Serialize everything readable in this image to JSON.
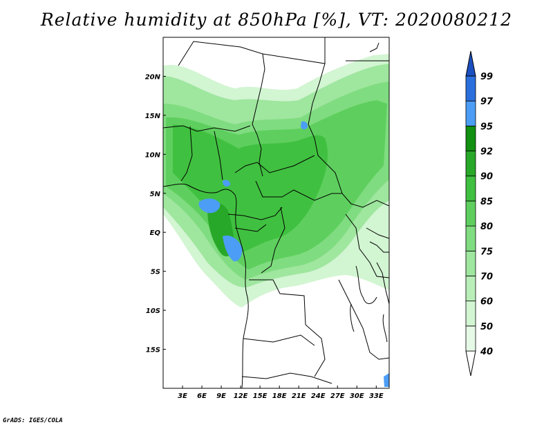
{
  "title": "Relative humidity at 850hPa [%], VT: 2020080212",
  "credit": "GrADS: IGES/COLA",
  "map": {
    "lon_labels": [
      {
        "text": "3E",
        "value": 3
      },
      {
        "text": "6E",
        "value": 6
      },
      {
        "text": "9E",
        "value": 9
      },
      {
        "text": "12E",
        "value": 12
      },
      {
        "text": "15E",
        "value": 15
      },
      {
        "text": "18E",
        "value": 18
      },
      {
        "text": "21E",
        "value": 21
      },
      {
        "text": "24E",
        "value": 24
      },
      {
        "text": "27E",
        "value": 27
      },
      {
        "text": "30E",
        "value": 30
      },
      {
        "text": "33E",
        "value": 33
      }
    ],
    "lat_labels": [
      {
        "text": "20N",
        "value": 20
      },
      {
        "text": "15N",
        "value": 15
      },
      {
        "text": "10N",
        "value": 10
      },
      {
        "text": "5N",
        "value": 5
      },
      {
        "text": "EQ",
        "value": 0
      },
      {
        "text": "5S",
        "value": -5
      },
      {
        "text": "10S",
        "value": -10
      },
      {
        "text": "15S",
        "value": -15
      }
    ],
    "lon_range": [
      0,
      35
    ],
    "lat_range": [
      -20,
      25
    ]
  },
  "colorbar": {
    "levels": [
      "40",
      "50",
      "60",
      "70",
      "75",
      "80",
      "85",
      "90",
      "92",
      "95",
      "97",
      "99"
    ],
    "colors": [
      "#ffffff",
      "#e6f9e6",
      "#d2f5d2",
      "#b9eeb9",
      "#9fe69f",
      "#80dc80",
      "#5ecf5e",
      "#40c040",
      "#28a828",
      "#119011",
      "#4c9df5",
      "#2b6fdc",
      "#1a4fbf"
    ]
  }
}
